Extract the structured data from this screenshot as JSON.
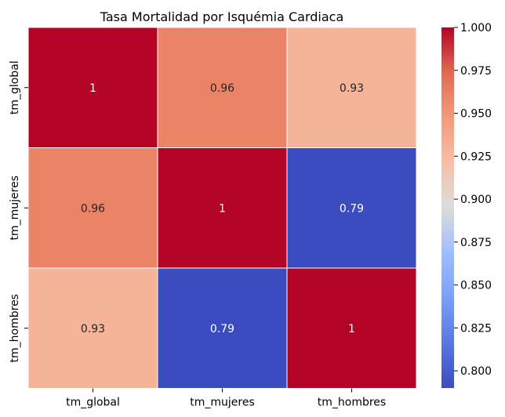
{
  "chart_data": {
    "type": "heatmap",
    "title": "Tasa Mortalidad por Isquémia Cardiaca",
    "x_categories": [
      "tm_global",
      "tm_mujeres",
      "tm_hombres"
    ],
    "y_categories": [
      "tm_global",
      "tm_mujeres",
      "tm_hombres"
    ],
    "values": [
      [
        1.0,
        0.96,
        0.93
      ],
      [
        0.96,
        1.0,
        0.79
      ],
      [
        0.93,
        0.79,
        1.0
      ]
    ],
    "annotations": [
      [
        "1",
        "0.96",
        "0.93"
      ],
      [
        "0.96",
        "1",
        "0.79"
      ],
      [
        "0.93",
        "0.79",
        "1"
      ]
    ],
    "colormap": "coolwarm",
    "vmin": 0.79,
    "vmax": 1.0,
    "colorbar_ticks": [
      "0.800",
      "0.825",
      "0.850",
      "0.875",
      "0.900",
      "0.925",
      "0.950",
      "0.975",
      "1.000"
    ],
    "colorbar_tick_values": [
      0.8,
      0.825,
      0.85,
      0.875,
      0.9,
      0.925,
      0.95,
      0.975,
      1.0
    ],
    "cell_line_color": "#ffffff"
  }
}
